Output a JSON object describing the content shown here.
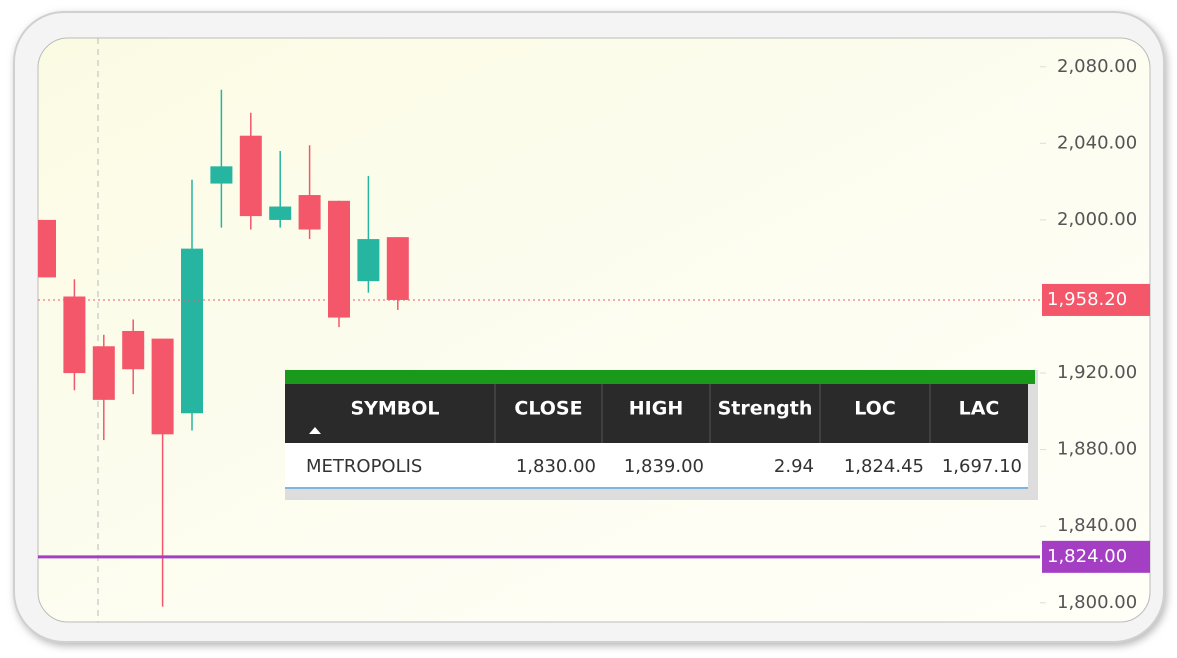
{
  "chart_data": {
    "type": "candlestick",
    "open": [
      2000,
      1960,
      1934,
      1942,
      1938,
      1899,
      2019,
      2044,
      2000,
      2013,
      2010,
      1968,
      1991
    ],
    "high": [
      2000,
      1969,
      1940,
      1948,
      1938,
      2021,
      2068,
      2056,
      2036,
      2039,
      2010,
      2023,
      1991
    ],
    "low": [
      1970,
      1911,
      1885,
      1909,
      1798,
      1890,
      1996,
      1995,
      1996,
      1990,
      1944,
      1962,
      1953
    ],
    "close": [
      1970,
      1920,
      1906,
      1922,
      1888,
      1985,
      2028,
      2002,
      2007,
      1995,
      1949,
      1990,
      1958.2
    ],
    "up_color": "#26b5a0",
    "down_color": "#f4566a",
    "ylim": [
      1791,
      2094
    ],
    "yticks": [
      {
        "value": 2080,
        "label": "2,080.00"
      },
      {
        "value": 2040,
        "label": "2,040.00"
      },
      {
        "value": 2000,
        "label": "2,000.00"
      },
      {
        "value": 1920,
        "label": "1,920.00"
      },
      {
        "value": 1880,
        "label": "1,880.00"
      },
      {
        "value": 1840,
        "label": "1,840.00"
      },
      {
        "value": 1800,
        "label": "1,800.00"
      }
    ],
    "price_line": {
      "value": 1958.2,
      "label": "1,958.20",
      "color": "#f4566a"
    },
    "support_line": {
      "value": 1824,
      "label": "1,824.00",
      "color": "#a43fc4"
    }
  },
  "table": {
    "columns": [
      "SYMBOL",
      "CLOSE",
      "HIGH",
      "Strength",
      "LOC",
      "LAC"
    ],
    "rows": [
      [
        "METROPOLIS",
        "1,830.00",
        "1,839.00",
        "2.94",
        "1,824.45",
        "1,697.10"
      ]
    ]
  }
}
